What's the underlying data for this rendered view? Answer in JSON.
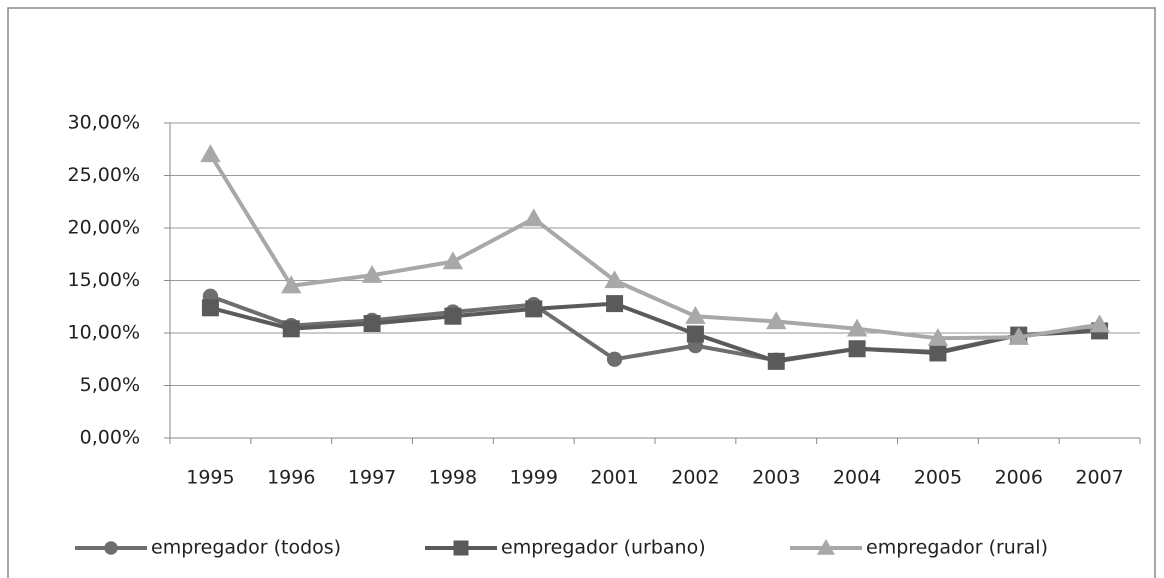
{
  "chart_data": {
    "type": "line",
    "categories": [
      "1995",
      "1996",
      "1997",
      "1998",
      "1999",
      "2001",
      "2002",
      "2003",
      "2004",
      "2005",
      "2006",
      "2007"
    ],
    "series": [
      {
        "name": "empregador (todos)",
        "color": "#6e6e6e",
        "marker": "circle",
        "values": [
          13.5,
          10.7,
          11.2,
          12.0,
          12.7,
          7.5,
          8.8,
          7.4,
          8.5,
          8.2,
          9.8,
          10.3
        ]
      },
      {
        "name": "empregador (urbano)",
        "color": "#5a5a5a",
        "marker": "square",
        "values": [
          12.4,
          10.4,
          10.9,
          11.6,
          12.3,
          12.8,
          9.9,
          7.3,
          8.5,
          8.1,
          9.8,
          10.2
        ]
      },
      {
        "name": "empregador (rural)",
        "color": "#a8a8a8",
        "marker": "triangle",
        "values": [
          27.0,
          14.5,
          15.5,
          16.8,
          20.9,
          15.0,
          11.6,
          11.1,
          10.4,
          9.5,
          9.6,
          10.8
        ]
      }
    ],
    "ylim": [
      0,
      30
    ],
    "yticks": [
      {
        "value": 0,
        "label": "0,00%"
      },
      {
        "value": 5,
        "label": "5,00%"
      },
      {
        "value": 10,
        "label": "10,00%"
      },
      {
        "value": 15,
        "label": "15,00%"
      },
      {
        "value": 20,
        "label": "20,00%"
      },
      {
        "value": 25,
        "label": "25,00%"
      },
      {
        "value": 30,
        "label": "30,00%"
      }
    ],
    "grid": true,
    "legend": "bottom"
  }
}
